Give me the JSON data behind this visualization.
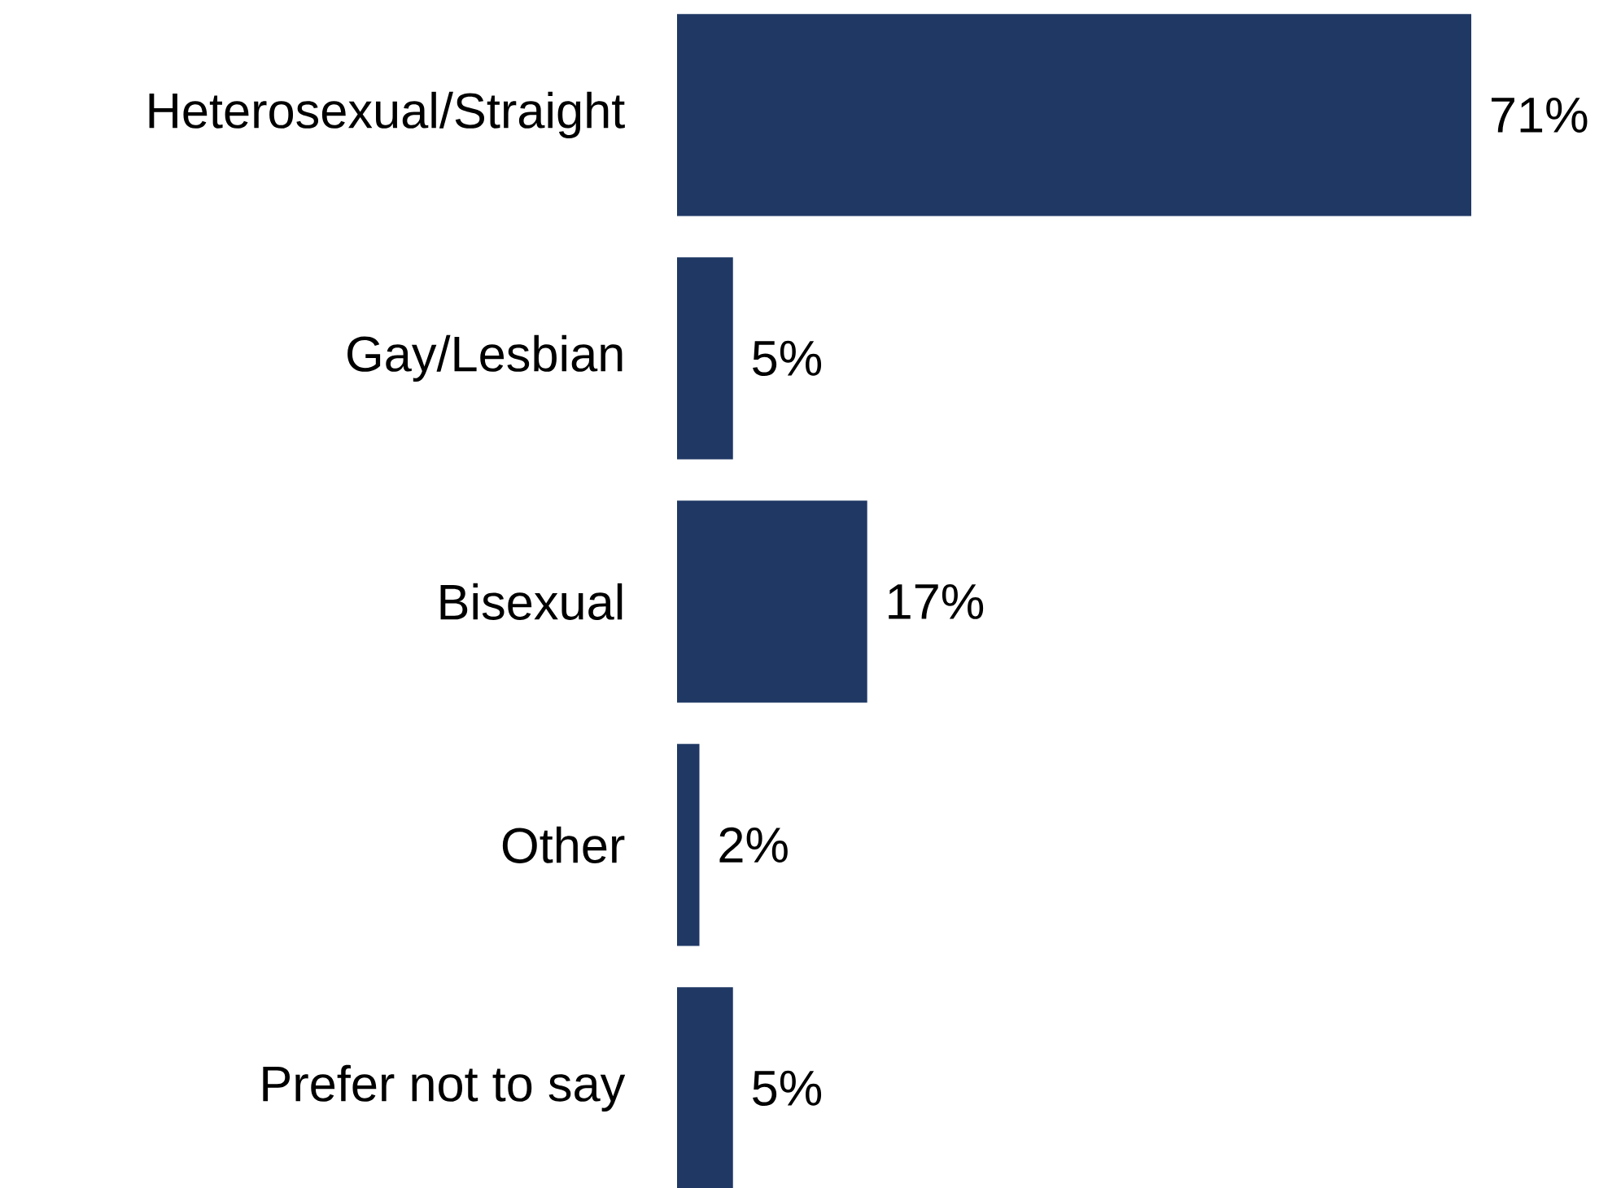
{
  "chart_data": {
    "type": "bar",
    "orientation": "horizontal",
    "categories": [
      "Heterosexual/Straight",
      "Gay/Lesbian",
      "Bisexual",
      "Other",
      "Prefer not to say"
    ],
    "values": [
      71,
      5,
      17,
      2,
      5
    ],
    "value_labels": [
      "71%",
      "5%",
      "17%",
      "2%",
      "5%"
    ],
    "color": "#1f3864",
    "xlim": [
      0,
      71
    ],
    "tick_labels": "y"
  }
}
